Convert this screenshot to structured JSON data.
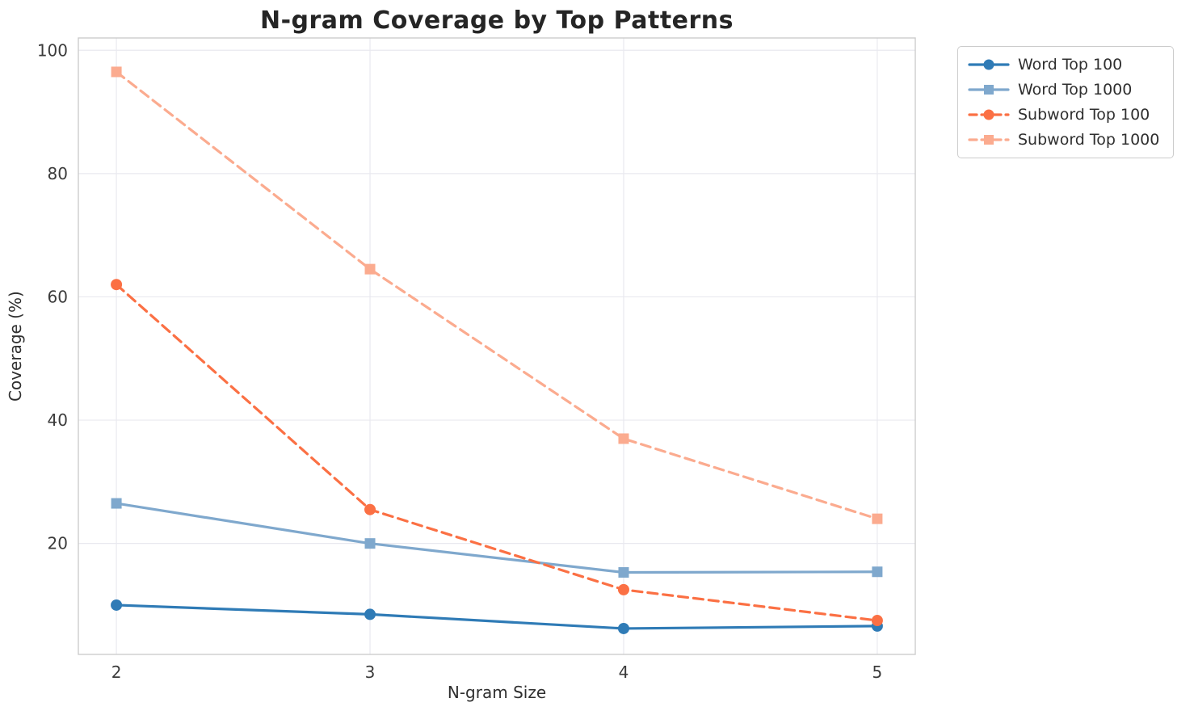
{
  "page": {
    "background_color": "#ffffff",
    "grid_color": "#e9e9ef",
    "spine_color": "#cccccc",
    "tick_label_color": "#3b3b3b"
  },
  "chart_data": {
    "type": "line",
    "title": "N-gram Coverage by Top Patterns",
    "xlabel": "N-gram Size",
    "ylabel": "Coverage (%)",
    "x": [
      2,
      3,
      4,
      5
    ],
    "xticks": [
      2,
      3,
      4,
      5
    ],
    "yticks": [
      20,
      40,
      60,
      80,
      100
    ],
    "xlim": [
      1.85,
      5.15
    ],
    "ylim": [
      2,
      102
    ],
    "grid": true,
    "legend_position": "outside-top-right",
    "series": [
      {
        "id": "word-top-100",
        "name": "Word Top 100",
        "values": [
          10,
          8.5,
          6.2,
          6.6
        ],
        "color": "#2f7bb6",
        "linestyle": "solid",
        "marker": "circle"
      },
      {
        "id": "word-top-1000",
        "name": "Word Top 1000",
        "values": [
          26.5,
          20,
          15.3,
          15.4
        ],
        "color": "#7fa8cd",
        "linestyle": "solid",
        "marker": "square"
      },
      {
        "id": "subword-top-100",
        "name": "Subword Top 100",
        "values": [
          62,
          25.5,
          12.5,
          7.5
        ],
        "color": "#fb7044",
        "linestyle": "dashed",
        "marker": "circle"
      },
      {
        "id": "subword-top-1000",
        "name": "Subword Top 1000",
        "values": [
          96.5,
          64.5,
          37,
          24
        ],
        "color": "#fbab8f",
        "linestyle": "dashed",
        "marker": "square"
      }
    ]
  }
}
